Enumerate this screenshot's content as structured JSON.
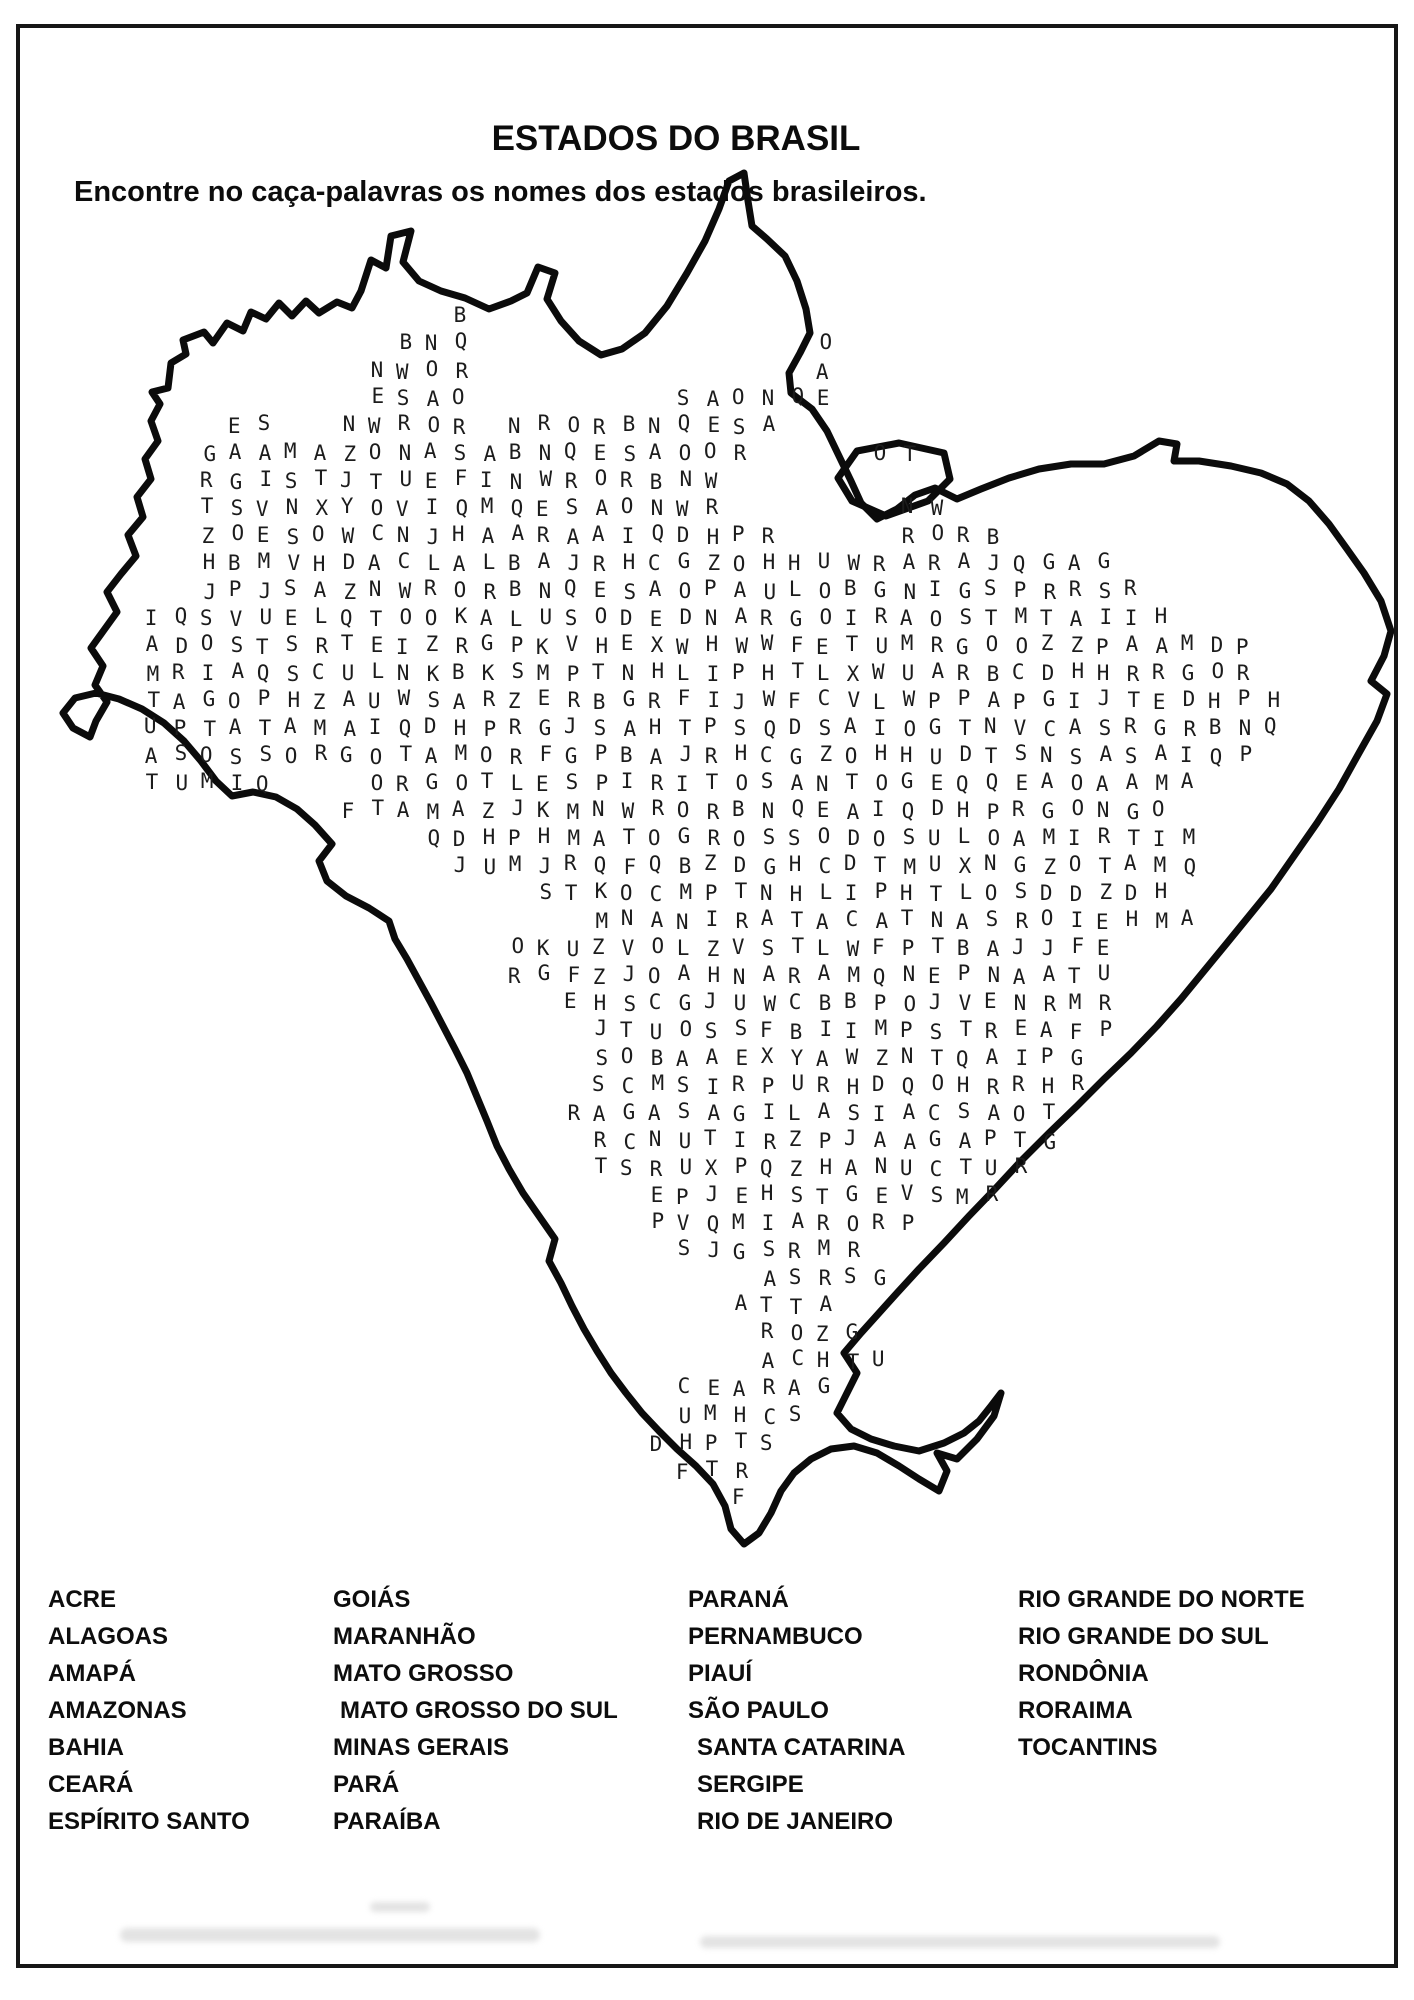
{
  "page": {
    "title": "ESTADOS DO BRASIL",
    "subtitle": "Encontre no caça-palavras os nomes dos estados brasileiros."
  },
  "puzzle": {
    "shape": "mapa do Brasil",
    "grid_rows": [
      {
        "r": 0,
        "c": 11,
        "t": "B"
      },
      {
        "r": 1,
        "c": 9,
        "t": "BNQ            O"
      },
      {
        "r": 2,
        "c": 8,
        "t": "NWOR            A"
      },
      {
        "r": 3,
        "c": 8,
        "t": "ESAO       SAONQE"
      },
      {
        "r": 4,
        "c": 3,
        "t": "ES  NWROR NRORBNQESA"
      },
      {
        "r": 5,
        "c": 2,
        "t": "GAAMAZONASABNQESAOOR    OT"
      },
      {
        "r": 6,
        "c": 2,
        "t": "RGISTJTUEFINWRORBNW"
      },
      {
        "r": 7,
        "c": 2,
        "t": "TSVNXYOVIQMQESAONWR      NW"
      },
      {
        "r": 8,
        "c": 2,
        "t": "ZOESOWCNJHAARAAIQDHPR    RORB"
      },
      {
        "r": 9,
        "c": 2,
        "t": "HBMVHDACLALBAJRHCGZOHHUWRARAJQGAG"
      },
      {
        "r": 10,
        "c": 2,
        "t": "JPJSAZNWRORBNQESAOPAULOBGNIGSPRRSR"
      },
      {
        "r": 11,
        "c": 0,
        "t": "IQSVUELQTOOKALUSODEDNARGOIRAOSTMTAIIH"
      },
      {
        "r": 12,
        "c": 0,
        "t": "ADOSTSRTEIZRGPKVHEXWHWWFETUMRGOOZZPAAMDP"
      },
      {
        "r": 13,
        "c": 0,
        "t": "MRIAQSCULNKBKSMPTNHLIPHTLXWUARBCDHHRRGOR"
      },
      {
        "r": 14,
        "c": 0,
        "t": "TAGOPHZAUWSARZERBGRFIJWFCVLWPPAPGIJTEDHPH"
      },
      {
        "r": 15,
        "c": 0,
        "t": "UPTATAMAIQDHPRGJSAHTPSQDSAIOGTNVCASRGRBNQ"
      },
      {
        "r": 16,
        "c": 0,
        "t": "ASOSSORGOTAMORFGPBAJRHCGZOHHUDTSNSASAIQP"
      },
      {
        "r": 17,
        "c": 0,
        "t": "TUMIQ   ORGOTLESPIRITOSANTOGEQQEAOAAMA"
      },
      {
        "r": 18,
        "c": 7,
        "t": "FTAMAZJKMNWRORBNQEAIQDHPRGONGO"
      },
      {
        "r": 19,
        "c": 10,
        "t": "QDHPHMATOGROSSODOSULOAMIRTIM"
      },
      {
        "r": 20,
        "c": 11,
        "t": "JUMJRQFQBZDGHCDTMUXNGZOTAMQ"
      },
      {
        "r": 21,
        "c": 14,
        "t": "STKOCMPTNHLIPHTLOSDDZDH"
      },
      {
        "r": 22,
        "c": 16,
        "t": "MNANIRATACATNASROIEHMA"
      },
      {
        "r": 23,
        "c": 13,
        "t": "OKUZVOLZVSTLWFPTBAJJFE"
      },
      {
        "r": 24,
        "c": 13,
        "t": "RGFZJOAHNARAMQNEPNAATU"
      },
      {
        "r": 25,
        "c": 15,
        "t": "EHSCGJUWCBBPOJVENRMR"
      },
      {
        "r": 26,
        "c": 16,
        "t": "JTUOSSFBIIMPSTREAFP"
      },
      {
        "r": 27,
        "c": 16,
        "t": "SOBAAEXYAWZNTQAIPG"
      },
      {
        "r": 28,
        "c": 16,
        "t": "SCMSIRPURHDQOHRRHR"
      },
      {
        "r": 29,
        "c": 15,
        "t": "RAGASAGILASIACSAOT"
      },
      {
        "r": 30,
        "c": 16,
        "t": "RCNUTIRZPJAAGAPTG"
      },
      {
        "r": 31,
        "c": 16,
        "t": "TSRUXPQZHANUCTUR"
      },
      {
        "r": 32,
        "c": 18,
        "t": "EPJEHSTGEVSMR"
      },
      {
        "r": 33,
        "c": 18,
        "t": "PVQMIARORP"
      },
      {
        "r": 34,
        "c": 19,
        "t": "SJGSRMR"
      },
      {
        "r": 35,
        "c": 22,
        "t": "ASRSG"
      },
      {
        "r": 36,
        "c": 21,
        "t": "ATTA"
      },
      {
        "r": 37,
        "c": 22,
        "t": "ROZG"
      },
      {
        "r": 38,
        "c": 22,
        "t": "ACHTU"
      },
      {
        "r": 39,
        "c": 19,
        "t": "CEARAG"
      },
      {
        "r": 40,
        "c": 19,
        "t": "UMHCS"
      },
      {
        "r": 41,
        "c": 18,
        "t": "DHPTS"
      },
      {
        "r": 42,
        "c": 19,
        "t": "FTR"
      },
      {
        "r": 43,
        "c": 21,
        "t": "F"
      }
    ]
  },
  "word_list": {
    "columns": [
      {
        "items": [
          "ACRE",
          "ALAGOAS",
          "AMAPÁ",
          "AMAZONAS",
          "BAHIA",
          "CEARÁ",
          "ESPÍRITO SANTO"
        ]
      },
      {
        "items": [
          "GOIÁS",
          "MARANHÃO",
          "MATO GROSSO",
          "MATO GROSSO DO SUL",
          "MINAS GERAIS",
          "PARÁ",
          "PARAÍBA"
        ]
      },
      {
        "items": [
          "PARANÁ",
          "PERNAMBUCO",
          "PIAUÍ",
          "SÃO PAULO",
          "SANTA CATARINA",
          "SERGIPE",
          "RIO DE JANEIRO"
        ]
      },
      {
        "items": [
          "RIO GRANDE DO NORTE",
          "RIO GRANDE DO SUL",
          "RONDÔNIA",
          "RORAIMA",
          "TOCANTINS"
        ]
      }
    ]
  },
  "colors": {
    "ink": "#0b0b0b",
    "letter_ink": "#1c1c1c",
    "paper": "#ffffff"
  }
}
